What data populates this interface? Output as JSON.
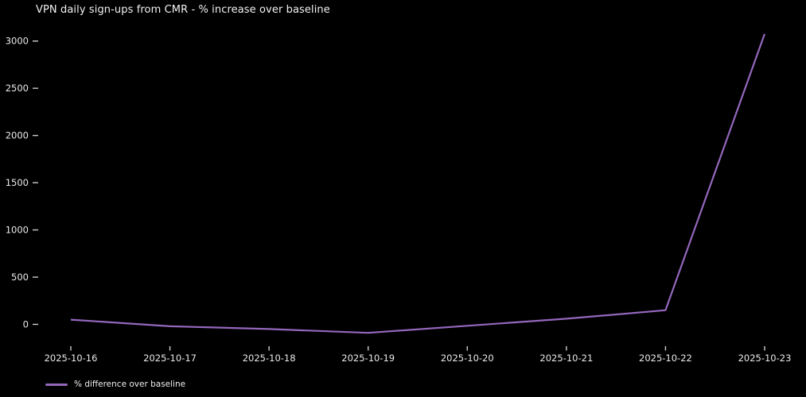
{
  "chart_data": {
    "type": "line",
    "title": "VPN daily sign-ups from CMR - % increase over baseline",
    "x": [
      "2025-10-16",
      "2025-10-17",
      "2025-10-18",
      "2025-10-19",
      "2025-10-20",
      "2025-10-21",
      "2025-10-22",
      "2025-10-23"
    ],
    "series": [
      {
        "name": "% difference over baseline",
        "values": [
          50,
          -20,
          -50,
          -90,
          -15,
          60,
          150,
          3075
        ]
      }
    ],
    "yticks": [
      0,
      500,
      1000,
      1500,
      2000,
      2500,
      3000
    ],
    "ylim": [
      -120,
      3110
    ],
    "xlabel": "",
    "ylabel": "",
    "grid": false,
    "legend_position": "lower-left-outside",
    "colors": {
      "line": "#9467bd",
      "background": "#000000",
      "text": "#f2f2f2",
      "tick": "#cccccc"
    }
  }
}
